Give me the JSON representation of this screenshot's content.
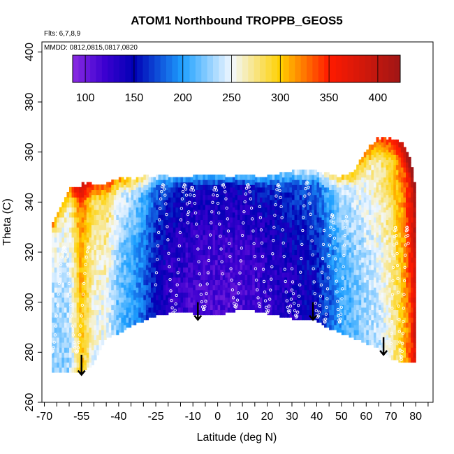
{
  "chart_data": {
    "type": "heatmap",
    "title": "ATOM1 Northbound TROPPB_GEOS5",
    "notes": [
      "Flts: 6,7,8,9",
      "MMDD: 0812,0815,0817,0820"
    ],
    "xlabel": "Latitude (deg N)",
    "ylabel": "Theta (C)",
    "xlim": [
      -71,
      87
    ],
    "ylim": [
      260,
      404
    ],
    "x_ticks": [
      -70,
      -55,
      -40,
      -25,
      -10,
      0,
      10,
      20,
      30,
      40,
      50,
      60,
      70,
      80
    ],
    "x_tick_labels": [
      "-70",
      "-55",
      "-40",
      "-25",
      "-10",
      "0",
      "10",
      "20",
      "30",
      "40",
      "50",
      "60",
      "70",
      "80"
    ],
    "x_minor_step": 5,
    "y_ticks": [
      260,
      280,
      300,
      320,
      340,
      360,
      380,
      400
    ],
    "y_tick_labels": [
      "260",
      "280",
      "300",
      "320",
      "340",
      "360",
      "380",
      "400"
    ],
    "colorbar": {
      "min": 87,
      "max": 423,
      "ticks": [
        100,
        150,
        200,
        250,
        300,
        350,
        400
      ],
      "tick_labels": [
        "100",
        "150",
        "200",
        "250",
        "300",
        "350",
        "400"
      ],
      "stops": [
        {
          "v": 87,
          "c": "#8a2be2"
        },
        {
          "v": 120,
          "c": "#3c00d0"
        },
        {
          "v": 150,
          "c": "#0000b4"
        },
        {
          "v": 200,
          "c": "#1ea0ff"
        },
        {
          "v": 250,
          "c": "#f2f8ff"
        },
        {
          "v": 300,
          "c": "#ffd000"
        },
        {
          "v": 350,
          "c": "#ff1a00"
        },
        {
          "v": 423,
          "c": "#a01616"
        }
      ]
    },
    "field_profile": {
      "lat": [
        -67,
        -60,
        -55,
        -50,
        -45,
        -40,
        -35,
        -30,
        -25,
        -20,
        -10,
        0,
        10,
        20,
        30,
        40,
        45,
        50,
        55,
        60,
        65,
        70,
        75,
        78,
        80
      ],
      "value": [
        225,
        230,
        300,
        250,
        255,
        215,
        205,
        180,
        150,
        130,
        115,
        112,
        115,
        125,
        135,
        150,
        175,
        205,
        215,
        230,
        240,
        260,
        300,
        340,
        390
      ],
      "top_theta": [
        330,
        345,
        346,
        347,
        347,
        348,
        349,
        349,
        350,
        350,
        350,
        350,
        350,
        350,
        351,
        352,
        350,
        350,
        352,
        360,
        365,
        365,
        362,
        355,
        345
      ],
      "bottom_theta": [
        272,
        272,
        272,
        276,
        286,
        288,
        291,
        293,
        295,
        296,
        296,
        295,
        298,
        296,
        294,
        293,
        290,
        288,
        286,
        284,
        282,
        278,
        276,
        276,
        276
      ]
    },
    "tropopause_arrows": [
      {
        "lat": -55,
        "theta_from": 279,
        "theta_to": 271
      },
      {
        "lat": -8,
        "theta_from": 300,
        "theta_to": 293
      },
      {
        "lat": 38.5,
        "theta_from": 300,
        "theta_to": 293
      },
      {
        "lat": 67,
        "theta_from": 286,
        "theta_to": 279
      }
    ],
    "flight_tracks": [
      {
        "lat_start": -67,
        "lat_end": -52,
        "theta_low": 280,
        "theta_high": 322
      },
      {
        "lat_start": -25,
        "lat_end": -12,
        "theta_low": 295,
        "theta_high": 347
      },
      {
        "lat_start": -12,
        "lat_end": 2,
        "theta_low": 297,
        "theta_high": 346
      },
      {
        "lat_start": 2,
        "lat_end": 17,
        "theta_low": 298,
        "theta_high": 347
      },
      {
        "lat_start": 17,
        "lat_end": 30,
        "theta_low": 296,
        "theta_high": 347
      },
      {
        "lat_start": 30,
        "lat_end": 43,
        "theta_low": 294,
        "theta_high": 348
      },
      {
        "lat_start": 43,
        "lat_end": 52,
        "theta_low": 292,
        "theta_high": 335
      },
      {
        "lat_start": 70,
        "lat_end": 77,
        "theta_low": 277,
        "theta_high": 330
      }
    ]
  }
}
